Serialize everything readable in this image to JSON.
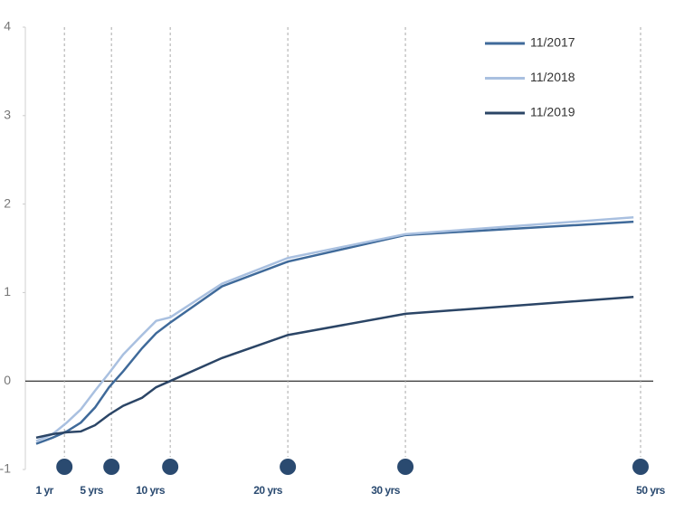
{
  "chart_data": {
    "type": "line",
    "x": [
      -1.4,
      0,
      1.2,
      2.4,
      3.6,
      4.8,
      6,
      7.6,
      8.8,
      10,
      14.4,
      20,
      30,
      49.4
    ],
    "series": [
      {
        "name": "11/2017",
        "color": "#3f6a9a",
        "values": [
          -0.71,
          -0.64,
          -0.57,
          -0.47,
          -0.3,
          -0.07,
          0.11,
          0.37,
          0.54,
          0.66,
          1.07,
          1.35,
          1.65,
          1.8
        ]
      },
      {
        "name": "11/2018",
        "color": "#a9c0e0",
        "values": [
          -0.68,
          -0.6,
          -0.47,
          -0.32,
          -0.11,
          0.09,
          0.3,
          0.52,
          0.68,
          0.72,
          1.1,
          1.39,
          1.66,
          1.85
        ]
      },
      {
        "name": "11/2019",
        "color": "#2b4566",
        "values": [
          -0.64,
          -0.6,
          -0.58,
          -0.57,
          -0.5,
          -0.38,
          -0.28,
          -0.19,
          -0.07,
          0,
          0.26,
          0.52,
          0.76,
          0.95
        ]
      }
    ],
    "xlim": [
      -1.4,
      50
    ],
    "xticks": [
      {
        "value": 1,
        "label": "1 yr"
      },
      {
        "value": 5,
        "label": "5 yrs"
      },
      {
        "value": 10,
        "label": "10 yrs"
      },
      {
        "value": 20,
        "label": "20 yrs"
      },
      {
        "value": 30,
        "label": "30 yrs"
      },
      {
        "value": 50,
        "label": "50 yrs"
      }
    ],
    "ylim": [
      -1,
      4
    ],
    "yticks": [
      -1,
      0,
      1,
      2,
      3,
      4
    ],
    "legend": "top-right"
  }
}
